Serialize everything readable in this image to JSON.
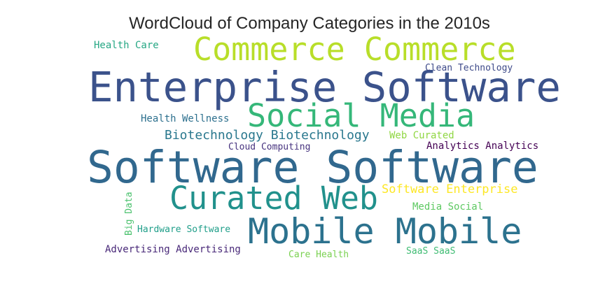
{
  "title": "WordCloud of Company Categories in the 2010s",
  "words": [
    {
      "text": "Software Software",
      "color": "#31688e"
    },
    {
      "text": "Enterprise Software",
      "color": "#3b528b"
    },
    {
      "text": "Mobile Mobile",
      "color": "#2c728e"
    },
    {
      "text": "Commerce Commerce",
      "color": "#b8de29"
    },
    {
      "text": "Social Media",
      "color": "#35b779"
    },
    {
      "text": "Curated Web",
      "color": "#21918c"
    },
    {
      "text": "Biotechnology Biotechnology",
      "color": "#2a788e"
    },
    {
      "text": "Software Enterprise",
      "color": "#fde725"
    },
    {
      "text": "Analytics Analytics",
      "color": "#440154"
    },
    {
      "text": "Advertising Advertising",
      "color": "#482878"
    },
    {
      "text": "Web Curated",
      "color": "#90d743"
    },
    {
      "text": "Media Social",
      "color": "#5ec962"
    },
    {
      "text": "Clean Technology",
      "color": "#3e4a89"
    },
    {
      "text": "Health Care",
      "color": "#26a784"
    },
    {
      "text": "Health Wellness",
      "color": "#2d708e"
    },
    {
      "text": "Cloud Computing",
      "color": "#46327e"
    },
    {
      "text": "Hardware Software",
      "color": "#1f9e89"
    },
    {
      "text": "Big Data",
      "color": "#4ac16d"
    },
    {
      "text": "Care Health",
      "color": "#7ad151"
    },
    {
      "text": "SaaS SaaS",
      "color": "#3fbc73"
    }
  ]
}
